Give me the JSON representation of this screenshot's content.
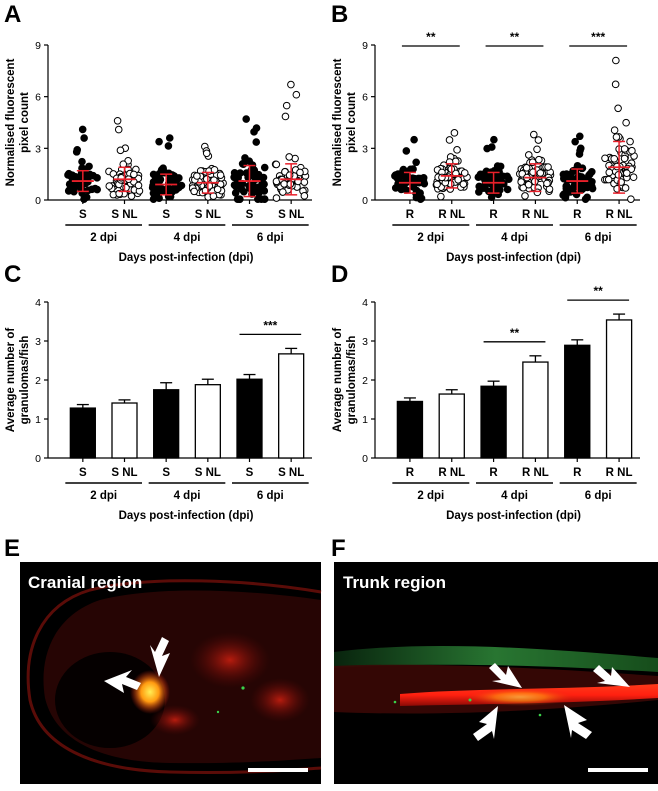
{
  "panels": {
    "A": {
      "letter": "A"
    },
    "B": {
      "letter": "B"
    },
    "C": {
      "letter": "C"
    },
    "D": {
      "letter": "D"
    },
    "E": {
      "letter": "E",
      "region_label": "Cranial region"
    },
    "F": {
      "letter": "F",
      "region_label": "Trunk region"
    }
  },
  "colors": {
    "filled": "#000000",
    "open": "#ffffff",
    "error_bars_scatter": "#e8202a",
    "micro_bg": "#000000",
    "micro_red": "#e02010",
    "micro_hot": "#ffcc00",
    "micro_green": "#1e7a2a"
  },
  "chart_data": [
    {
      "panel": "A",
      "type": "scatter",
      "title": "",
      "ylabel": "Normalised fluorescent pixel count",
      "xlabel": "Days post-infection (dpi)",
      "ylim": [
        0,
        9
      ],
      "yticks": [
        0,
        3,
        6,
        9
      ],
      "categories": [
        "S",
        "S NL",
        "S",
        "S NL",
        "S",
        "S NL"
      ],
      "groups": [
        "2 dpi",
        "4 dpi",
        "6 dpi"
      ],
      "fill": [
        "filled",
        "open",
        "filled",
        "open",
        "filled",
        "open"
      ],
      "means": [
        1.1,
        1.2,
        0.9,
        1.0,
        1.1,
        1.2
      ],
      "sd": [
        0.6,
        0.7,
        0.6,
        0.6,
        0.9,
        0.9
      ],
      "maxima": [
        4.1,
        4.6,
        3.6,
        3.1,
        4.7,
        6.7
      ],
      "significance": []
    },
    {
      "panel": "B",
      "type": "scatter",
      "title": "",
      "ylabel": "Normalised fluorescent pixel count",
      "xlabel": "Days post-infection (dpi)",
      "ylim": [
        0,
        9
      ],
      "yticks": [
        0,
        3,
        6,
        9
      ],
      "categories": [
        "R",
        "R NL",
        "R",
        "R NL",
        "R",
        "R NL"
      ],
      "groups": [
        "2 dpi",
        "4 dpi",
        "6 dpi"
      ],
      "fill": [
        "filled",
        "open",
        "filled",
        "open",
        "filled",
        "open"
      ],
      "means": [
        1.0,
        1.4,
        1.0,
        1.3,
        1.1,
        1.9
      ],
      "sd": [
        0.6,
        0.7,
        0.6,
        0.8,
        0.7,
        1.5
      ],
      "maxima": [
        3.5,
        3.9,
        3.5,
        3.8,
        3.7,
        8.1
      ],
      "significance": [
        {
          "between": [
            0,
            1
          ],
          "label": "**"
        },
        {
          "between": [
            2,
            3
          ],
          "label": "**"
        },
        {
          "between": [
            4,
            5
          ],
          "label": "***"
        }
      ]
    },
    {
      "panel": "C",
      "type": "bar",
      "title": "",
      "ylabel": "Average number of granulomas/fish",
      "xlabel": "Days post-infection (dpi)",
      "ylim": [
        0,
        4
      ],
      "yticks": [
        0,
        1,
        2,
        3,
        4
      ],
      "categories": [
        "S",
        "S NL",
        "S",
        "S NL",
        "S",
        "S NL"
      ],
      "groups": [
        "2 dpi",
        "4 dpi",
        "6 dpi"
      ],
      "fill": [
        "filled",
        "open",
        "filled",
        "open",
        "filled",
        "open"
      ],
      "values": [
        1.28,
        1.41,
        1.75,
        1.88,
        2.02,
        2.67
      ],
      "errors": [
        0.09,
        0.08,
        0.18,
        0.14,
        0.12,
        0.14
      ],
      "significance": [
        {
          "between": [
            4,
            5
          ],
          "label": "***"
        }
      ]
    },
    {
      "panel": "D",
      "type": "bar",
      "title": "",
      "ylabel": "Average number of granulomas/fish",
      "xlabel": "Days post-infection (dpi)",
      "ylim": [
        0,
        4
      ],
      "yticks": [
        0,
        1,
        2,
        3,
        4
      ],
      "categories": [
        "R",
        "R NL",
        "R",
        "R NL",
        "R",
        "R NL"
      ],
      "groups": [
        "2 dpi",
        "4 dpi",
        "6 dpi"
      ],
      "fill": [
        "filled",
        "open",
        "filled",
        "open",
        "filled",
        "open"
      ],
      "values": [
        1.45,
        1.64,
        1.84,
        2.46,
        2.89,
        3.54
      ],
      "errors": [
        0.09,
        0.11,
        0.13,
        0.16,
        0.14,
        0.15
      ],
      "significance": [
        {
          "between": [
            2,
            3
          ],
          "label": "**"
        },
        {
          "between": [
            4,
            5
          ],
          "label": "**"
        }
      ]
    }
  ]
}
